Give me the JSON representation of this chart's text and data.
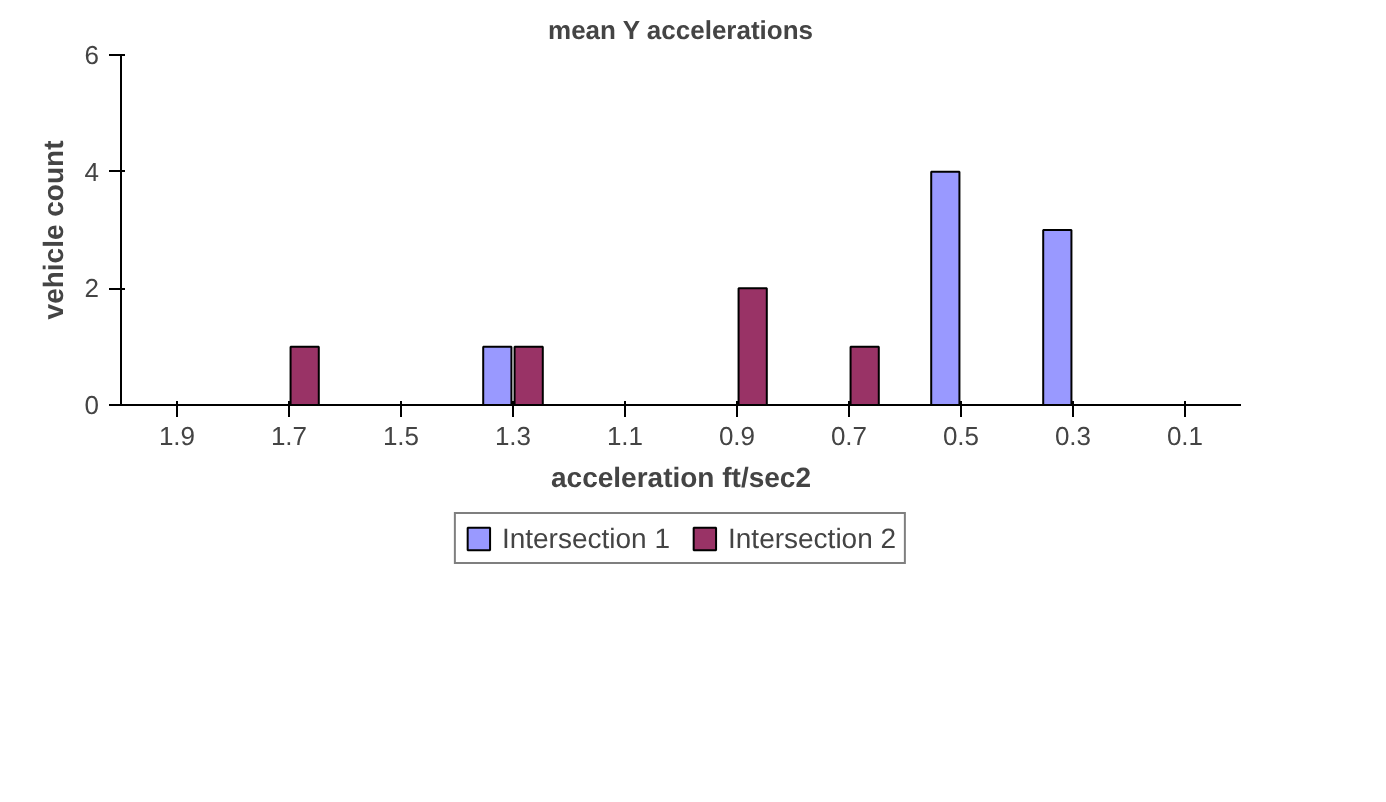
{
  "chart_data": {
    "type": "bar",
    "title": "mean Y accelerations",
    "xlabel": "acceleration ft/sec2",
    "ylabel": "vehicle count",
    "categories": [
      "1.9",
      "1.7",
      "1.5",
      "1.3",
      "1.1",
      "0.9",
      "0.7",
      "0.5",
      "0.3",
      "0.1"
    ],
    "series": [
      {
        "name": "Intersection 1",
        "color": "#9999ff",
        "values": [
          0,
          0,
          0,
          1,
          0,
          0,
          0,
          4,
          3,
          0
        ]
      },
      {
        "name": "Intersection 2",
        "color": "#993366",
        "values": [
          0,
          1,
          0,
          1,
          0,
          2,
          1,
          0,
          0,
          0
        ]
      }
    ],
    "ylim": [
      0,
      6
    ],
    "yticks": [
      0,
      2,
      4,
      6
    ],
    "grid": false,
    "legend": "bottom"
  }
}
